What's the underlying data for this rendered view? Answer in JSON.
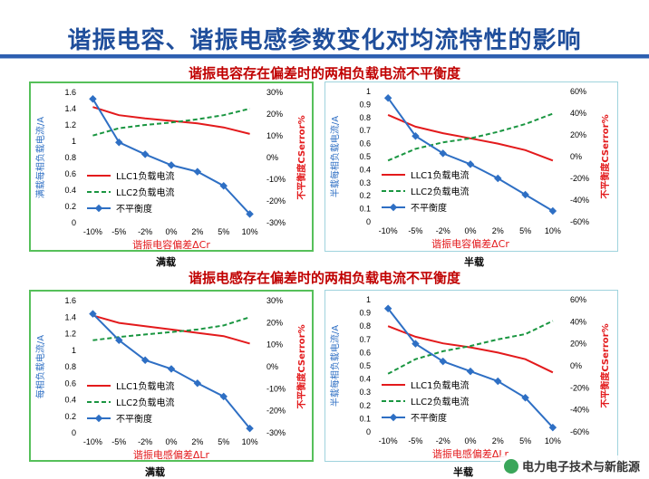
{
  "slide": {
    "title": "谐振电容、谐振电感参数变化对均流特性的影响",
    "section1_title": "谐振电容存在偏差时的两相负载电流不平衡度",
    "section2_title": "谐振电感存在偏差时的两相负载电流不平衡度",
    "watermark": "电力电子技术与新能源",
    "caption_full": "满载",
    "caption_half": "半载"
  },
  "colors": {
    "llc1": "#e31a1c",
    "llc2": "#1a9641",
    "imbalance": "#2e6fc4",
    "title": "#1f4e9b",
    "section": "#c00000"
  },
  "chart_data": [
    {
      "type": "line",
      "id": "cap_full",
      "categories": [
        "-10%",
        "-5%",
        "-2%",
        "0%",
        "2%",
        "5%",
        "10%"
      ],
      "xlabel": "谐振电容偏差ΔCr",
      "ylabel_left": "满载每相负载电流/A",
      "ylabel_right": "不平衡度CSerror%",
      "left_ticks": [
        "0",
        "0.2",
        "0.4",
        "0.6",
        "0.8",
        "1",
        "1.2",
        "1.4",
        "1.6"
      ],
      "right_ticks": [
        "-30%",
        "-20%",
        "-10%",
        "0%",
        "10%",
        "20%",
        "30%"
      ],
      "left_range": [
        0,
        1.6
      ],
      "right_range": [
        -30,
        30
      ],
      "legend": [
        "LLC1负载电流",
        "LLC2负载电流",
        "不平衡度"
      ],
      "legend_placement": "bottom-left",
      "series": [
        {
          "name": "LLC1负载电流",
          "axis": "left",
          "style": "solid",
          "values": [
            1.42,
            1.32,
            1.28,
            1.25,
            1.22,
            1.17,
            1.09
          ]
        },
        {
          "name": "LLC2负载电流",
          "axis": "left",
          "style": "dashed",
          "values": [
            1.07,
            1.16,
            1.2,
            1.23,
            1.27,
            1.32,
            1.4
          ]
        },
        {
          "name": "不平衡度",
          "axis": "right",
          "style": "marker",
          "values": [
            27,
            7,
            1.5,
            -3.5,
            -6.5,
            -13,
            -26
          ]
        }
      ]
    },
    {
      "type": "line",
      "id": "cap_half",
      "categories": [
        "-10%",
        "-5%",
        "-2%",
        "0%",
        "2%",
        "5%",
        "10%"
      ],
      "xlabel": "谐振电容偏差ΔCr",
      "ylabel_left": "半载每相负载电流/A",
      "ylabel_right": "不平衡度CSerror%",
      "left_ticks": [
        "0",
        "0.1",
        "0.2",
        "0.3",
        "0.4",
        "0.5",
        "0.6",
        "0.7",
        "0.8",
        "0.9",
        "1"
      ],
      "right_ticks": [
        "-60%",
        "-40%",
        "-20%",
        "0%",
        "20%",
        "40%",
        "60%"
      ],
      "left_range": [
        0,
        1
      ],
      "right_range": [
        -60,
        60
      ],
      "legend": [
        "LLC1负载电流",
        "LLC2负载电流",
        "不平衡度"
      ],
      "legend_placement": "bottom-left",
      "series": [
        {
          "name": "LLC1负载电流",
          "axis": "left",
          "style": "solid",
          "values": [
            0.82,
            0.73,
            0.68,
            0.64,
            0.6,
            0.55,
            0.47
          ]
        },
        {
          "name": "LLC2负载电流",
          "axis": "left",
          "style": "dashed",
          "values": [
            0.47,
            0.56,
            0.61,
            0.64,
            0.69,
            0.75,
            0.83
          ]
        },
        {
          "name": "不平衡度",
          "axis": "right",
          "style": "marker",
          "values": [
            54,
            19,
            3,
            -7,
            -20,
            -35,
            -50
          ]
        }
      ]
    },
    {
      "type": "line",
      "id": "ind_full",
      "categories": [
        "-10%",
        "-5%",
        "-2%",
        "0%",
        "2%",
        "5%",
        "10%"
      ],
      "xlabel": "谐振电感偏差ΔLr",
      "ylabel_left": "每相负载电流/A",
      "ylabel_right": "不平衡度CSerror%",
      "left_ticks": [
        "0",
        "0.2",
        "0.4",
        "0.6",
        "0.8",
        "1",
        "1.2",
        "1.4",
        "1.6"
      ],
      "right_ticks": [
        "-30%",
        "-20%",
        "-10%",
        "0%",
        "10%",
        "20%",
        "30%"
      ],
      "left_range": [
        0,
        1.6
      ],
      "right_range": [
        -30,
        30
      ],
      "legend": [
        "LLC1负载电流",
        "LLC2负载电流",
        "不平衡度"
      ],
      "legend_placement": "bottom-left",
      "series": [
        {
          "name": "LLC1负载电流",
          "axis": "left",
          "style": "solid",
          "values": [
            1.42,
            1.33,
            1.29,
            1.25,
            1.21,
            1.17,
            1.08
          ]
        },
        {
          "name": "LLC2负载电流",
          "axis": "left",
          "style": "dashed",
          "values": [
            1.12,
            1.16,
            1.19,
            1.22,
            1.25,
            1.3,
            1.4
          ]
        },
        {
          "name": "不平衡度",
          "axis": "right",
          "style": "marker",
          "values": [
            24,
            12,
            3,
            -1,
            -7.5,
            -13.5,
            -28
          ]
        }
      ]
    },
    {
      "type": "line",
      "id": "ind_half",
      "categories": [
        "-10%",
        "-5%",
        "-2%",
        "0%",
        "2%",
        "5%",
        "10%"
      ],
      "xlabel": "谐振电感偏差ΔLr",
      "ylabel_left": "半载每相负载电流/A",
      "ylabel_right": "不平衡度CSerror%",
      "left_ticks": [
        "0",
        "0.1",
        "0.2",
        "0.3",
        "0.4",
        "0.5",
        "0.6",
        "0.7",
        "0.8",
        "0.9",
        "1"
      ],
      "right_ticks": [
        "-60%",
        "-40%",
        "-20%",
        "0%",
        "20%",
        "40%",
        "60%"
      ],
      "left_range": [
        0,
        1
      ],
      "right_range": [
        -60,
        60
      ],
      "legend": [
        "LLC1负载电流",
        "LLC2负载电流",
        "不平衡度"
      ],
      "legend_placement": "bottom-left",
      "series": [
        {
          "name": "LLC1负载电流",
          "axis": "left",
          "style": "solid",
          "values": [
            0.8,
            0.72,
            0.67,
            0.64,
            0.6,
            0.55,
            0.45
          ]
        },
        {
          "name": "LLC2负载电流",
          "axis": "left",
          "style": "dashed",
          "values": [
            0.44,
            0.55,
            0.61,
            0.65,
            0.7,
            0.74,
            0.84
          ]
        },
        {
          "name": "不平衡度",
          "axis": "right",
          "style": "marker",
          "values": [
            52,
            20,
            4,
            -5,
            -14,
            -29,
            -56
          ]
        }
      ]
    }
  ]
}
